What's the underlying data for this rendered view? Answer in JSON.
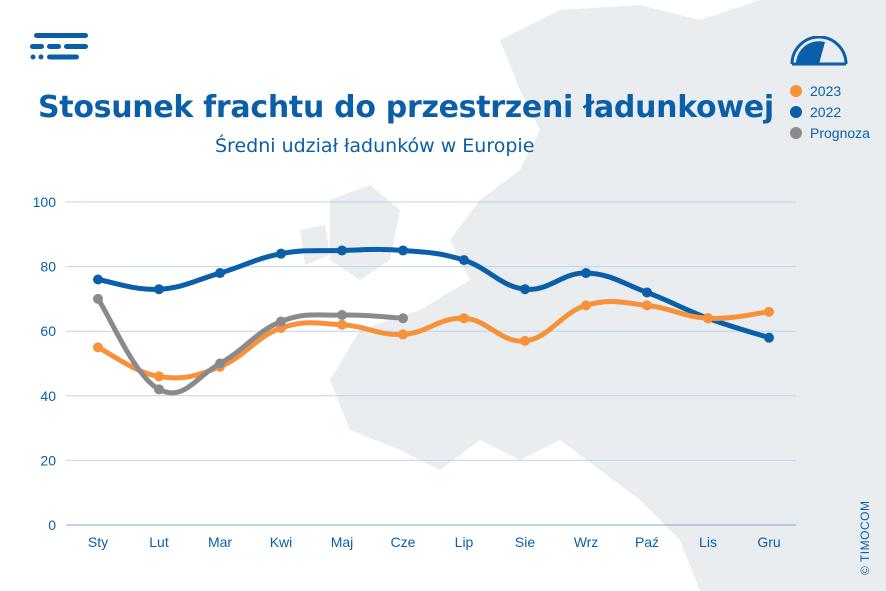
{
  "header": {
    "title": "Stosunek frachtu do przestrzeni ładunkowej",
    "subtitle": "Średni udział ładunków w Europie"
  },
  "legend": [
    {
      "label": "2023",
      "color": "#f7923a"
    },
    {
      "label": "2022",
      "color": "#0a5fa8"
    },
    {
      "label": "Prognoza",
      "color": "#8a8a8a"
    }
  ],
  "footer": {
    "copyright": "© TIMOCOM"
  },
  "colors": {
    "brand": "#0a5fa8",
    "grid": "#bcd4ea",
    "map": "#e9edf0"
  },
  "chart_data": {
    "type": "line",
    "categories": [
      "Sty",
      "Lut",
      "Mar",
      "Kwi",
      "Maj",
      "Cze",
      "Lip",
      "Sie",
      "Wrz",
      "Paź",
      "Lis",
      "Gru"
    ],
    "ylim": [
      0,
      100
    ],
    "yticks": [
      0,
      20,
      40,
      60,
      80,
      100
    ],
    "grid": true,
    "legend_position": "top-right",
    "series": [
      {
        "name": "2022",
        "color": "#0a5fa8",
        "values": [
          76,
          73,
          78,
          84,
          85,
          85,
          82,
          73,
          78,
          72,
          64,
          58
        ]
      },
      {
        "name": "2023",
        "color": "#f7923a",
        "values": [
          55,
          46,
          49,
          61,
          62,
          59,
          64,
          57,
          68,
          68,
          64,
          66
        ]
      },
      {
        "name": "Prognoza",
        "color": "#8a8a8a",
        "values": [
          70,
          42,
          50,
          63,
          65,
          64,
          null,
          null,
          null,
          null,
          null,
          null
        ]
      }
    ]
  }
}
